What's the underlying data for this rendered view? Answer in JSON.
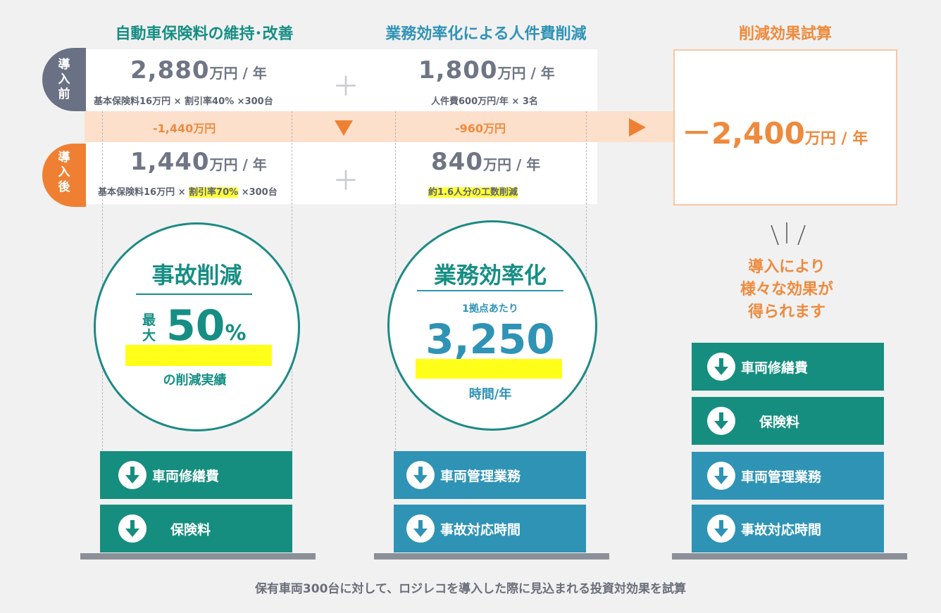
{
  "headers": {
    "col1": "自動車保険料の維持･改善",
    "col2": "業務効率化による人件費削減",
    "col3": "削減効果試算"
  },
  "badges": {
    "before": "導入前",
    "after": "導入後"
  },
  "before": {
    "col1_value": "2,880",
    "col1_unit": "万円 / 年",
    "col1_detail": "基本保険料16万円 × 割引率40% ×300台",
    "col2_value": "1,800",
    "col2_unit": "万円 / 年",
    "col2_detail": "人件費600万円/年 × 3名"
  },
  "reduction": {
    "col1": "-1,440万円",
    "col2": "-960万円"
  },
  "after": {
    "col1_value": "1,440",
    "col1_unit": "万円 / 年",
    "col1_detail_pre": "基本保険料16万円 × ",
    "col1_detail_hl": "割引率70%",
    "col1_detail_post": " ×300台",
    "col2_value": "840",
    "col2_unit": "万円 / 年",
    "col2_detail_hl": "約1.6人分の工数削減"
  },
  "result": {
    "value": "－2,400",
    "unit": "万円 / 年",
    "effect_text": [
      "導入により",
      "様々な効果が",
      "得られます"
    ]
  },
  "circle1": {
    "title": "事故削減",
    "prefix": [
      "最",
      "大"
    ],
    "value": "50",
    "percent": "%",
    "caption": "の削減実績"
  },
  "circle2": {
    "title": "業務効率化",
    "sub": "1拠点あたり",
    "value": "3,250",
    "caption": "時間/年"
  },
  "col1_boxes": [
    "車両修繕費",
    "保険料"
  ],
  "col2_boxes": [
    "車両管理業務",
    "事故対応時間"
  ],
  "col3_boxes": [
    "車両修繕費",
    "保険料",
    "車両管理業務",
    "事故対応時間"
  ],
  "footer": "保有車両300台に対して、ロジレコを導入した際に見込まれる投資対効果を試算",
  "colors": {
    "teal": "#168e7f",
    "blue": "#2f93b6",
    "orange": "#ee8a3d",
    "highlight": "#ffff3a"
  }
}
